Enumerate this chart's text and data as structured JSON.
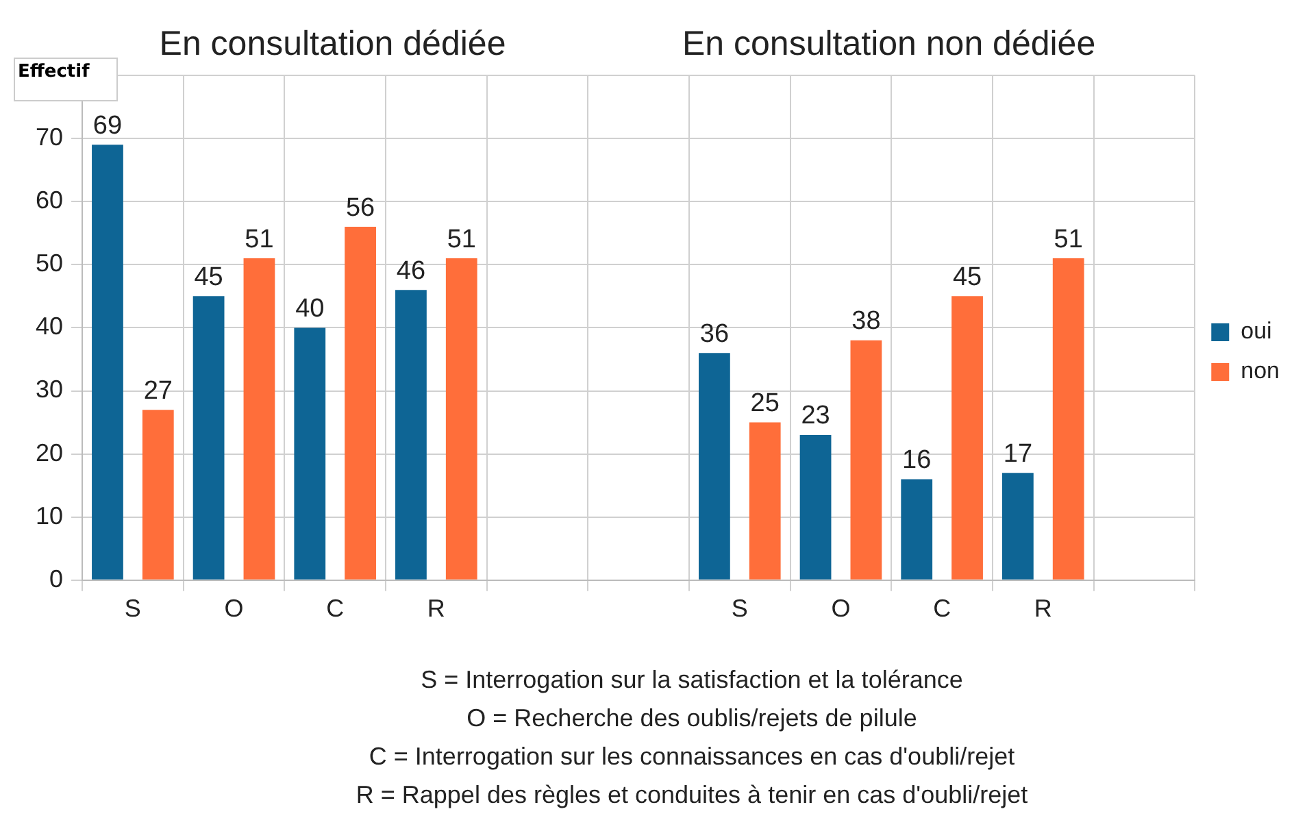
{
  "chart_data": {
    "type": "bar",
    "ylabel": "Effectif",
    "categories": [
      "S",
      "O",
      "C",
      "R",
      null,
      null,
      "S",
      "O",
      "C",
      "R",
      null
    ],
    "series": [
      {
        "name": "oui",
        "color": "#0e6595",
        "values": [
          69,
          45,
          40,
          46,
          null,
          null,
          36,
          23,
          16,
          17,
          null
        ]
      },
      {
        "name": "non",
        "color": "#ff6e3a",
        "values": [
          27,
          51,
          56,
          51,
          null,
          null,
          25,
          38,
          45,
          51,
          null
        ]
      }
    ],
    "ylim": [
      0,
      80
    ],
    "yticks": [
      0,
      10,
      20,
      30,
      40,
      50,
      60,
      70,
      {
        "value": 80,
        "label": null
      }
    ],
    "grid": true,
    "legend": "right",
    "data_labels": true,
    "annotations": [
      "En consultation dédiée",
      "En consultation non dédiée",
      "S = Interrogation sur la satisfaction et la tolérance",
      "O = Recherche des oublis/rejets de pilule",
      "C = Interrogation sur les connaissances en cas d'oubli/rejet",
      "R = Rappel des règles et conduites à tenir en cas d'oubli/rejet"
    ]
  }
}
